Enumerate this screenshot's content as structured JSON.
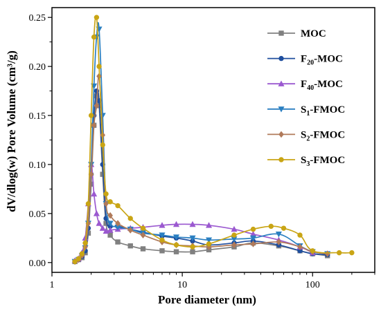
{
  "chart_data": {
    "type": "line",
    "title": "",
    "xlabel": "Pore diameter (nm)",
    "ylabel": "dV/dlog(w) Pore Volume (cm³/g)",
    "xscale": "log",
    "xlim": [
      1,
      300
    ],
    "ylim": [
      -0.01,
      0.26
    ],
    "x_ticks": [
      "1",
      "10",
      "100"
    ],
    "y_ticks": [
      "0.00",
      "0.05",
      "0.10",
      "0.15",
      "0.20",
      "0.25"
    ],
    "grid": false,
    "legend_position": "right",
    "series": [
      {
        "name": "MOC",
        "name_main": "MOC",
        "name_sub": "",
        "name_tail": "",
        "color": "#808080",
        "marker": "square",
        "x": [
          1.5,
          1.6,
          1.7,
          1.8,
          1.9,
          2.0,
          2.1,
          2.2,
          2.3,
          2.45,
          2.6,
          2.8,
          3.2,
          4,
          5,
          7,
          9,
          12,
          16,
          25,
          35,
          55,
          80,
          100,
          130
        ],
        "y": [
          0.001,
          0.003,
          0.005,
          0.01,
          0.03,
          0.08,
          0.14,
          0.17,
          0.16,
          0.09,
          0.04,
          0.028,
          0.021,
          0.017,
          0.014,
          0.012,
          0.011,
          0.011,
          0.013,
          0.016,
          0.02,
          0.017,
          0.012,
          0.009,
          0.007
        ]
      },
      {
        "name": "F20-MOC",
        "name_main": "F",
        "name_sub": "20",
        "name_tail": "-MOC",
        "color": "#1f4e9e",
        "marker": "circle",
        "x": [
          1.5,
          1.6,
          1.7,
          1.8,
          1.9,
          2.0,
          2.1,
          2.2,
          2.3,
          2.45,
          2.6,
          2.8,
          3.2,
          4,
          5,
          7,
          9,
          12,
          16,
          25,
          35,
          55,
          80,
          100,
          130
        ],
        "y": [
          0.001,
          0.003,
          0.006,
          0.012,
          0.035,
          0.09,
          0.15,
          0.175,
          0.165,
          0.1,
          0.045,
          0.037,
          0.037,
          0.034,
          0.031,
          0.027,
          0.025,
          0.022,
          0.018,
          0.02,
          0.022,
          0.018,
          0.012,
          0.009,
          0.008
        ]
      },
      {
        "name": "F40-MOC",
        "name_main": "F",
        "name_sub": "40",
        "name_tail": "-MOC",
        "color": "#9b59d0",
        "marker": "triangle-up",
        "x": [
          1.5,
          1.6,
          1.7,
          1.8,
          1.9,
          2.0,
          2.1,
          2.2,
          2.3,
          2.45,
          2.6,
          2.8,
          3.2,
          4,
          5,
          7,
          9,
          12,
          16,
          25,
          35,
          55,
          80,
          100
        ],
        "y": [
          0.002,
          0.004,
          0.01,
          0.025,
          0.06,
          0.1,
          0.07,
          0.05,
          0.04,
          0.035,
          0.032,
          0.033,
          0.034,
          0.035,
          0.036,
          0.038,
          0.039,
          0.039,
          0.038,
          0.034,
          0.029,
          0.023,
          0.016,
          0.01
        ]
      },
      {
        "name": "S1-FMOC",
        "name_main": "S",
        "name_sub": "1",
        "name_tail": "-FMOC",
        "color": "#2a7fc1",
        "marker": "triangle-down",
        "x": [
          1.5,
          1.6,
          1.7,
          1.8,
          1.9,
          2.0,
          2.1,
          2.2,
          2.3,
          2.45,
          2.6,
          2.8,
          3.2,
          4,
          5,
          7,
          9,
          12,
          16,
          25,
          35,
          55,
          80,
          100,
          130
        ],
        "y": [
          0.001,
          0.003,
          0.007,
          0.015,
          0.04,
          0.1,
          0.18,
          0.23,
          0.238,
          0.15,
          0.06,
          0.04,
          0.036,
          0.034,
          0.03,
          0.028,
          0.026,
          0.025,
          0.023,
          0.024,
          0.025,
          0.029,
          0.017,
          0.011,
          0.009
        ]
      },
      {
        "name": "S2-FMOC",
        "name_main": "S",
        "name_sub": "2",
        "name_tail": "-FMOC",
        "color": "#b07a5a",
        "marker": "diamond",
        "x": [
          1.5,
          1.6,
          1.7,
          1.8,
          1.9,
          2.0,
          2.1,
          2.2,
          2.3,
          2.45,
          2.6,
          2.8,
          3.2,
          4,
          5,
          7,
          9,
          12,
          16,
          25,
          35,
          55,
          80,
          100,
          130
        ],
        "y": [
          0.001,
          0.003,
          0.007,
          0.016,
          0.04,
          0.09,
          0.14,
          0.16,
          0.19,
          0.13,
          0.06,
          0.048,
          0.04,
          0.033,
          0.028,
          0.021,
          0.018,
          0.017,
          0.016,
          0.018,
          0.019,
          0.021,
          0.016,
          0.011,
          0.009
        ]
      },
      {
        "name": "S3-FMOC",
        "name_main": "S",
        "name_sub": "3",
        "name_tail": "-FMOC",
        "color": "#c9a515",
        "marker": "circle",
        "x": [
          1.5,
          1.6,
          1.7,
          1.8,
          1.9,
          2.0,
          2.1,
          2.2,
          2.3,
          2.45,
          2.6,
          2.8,
          3.2,
          4,
          5,
          7,
          9,
          12,
          16,
          25,
          35,
          48,
          60,
          80,
          100,
          160,
          200
        ],
        "y": [
          0.001,
          0.004,
          0.009,
          0.02,
          0.06,
          0.15,
          0.23,
          0.25,
          0.2,
          0.12,
          0.07,
          0.062,
          0.058,
          0.045,
          0.035,
          0.023,
          0.018,
          0.016,
          0.019,
          0.028,
          0.034,
          0.037,
          0.035,
          0.028,
          0.012,
          0.01,
          0.01
        ]
      }
    ]
  }
}
